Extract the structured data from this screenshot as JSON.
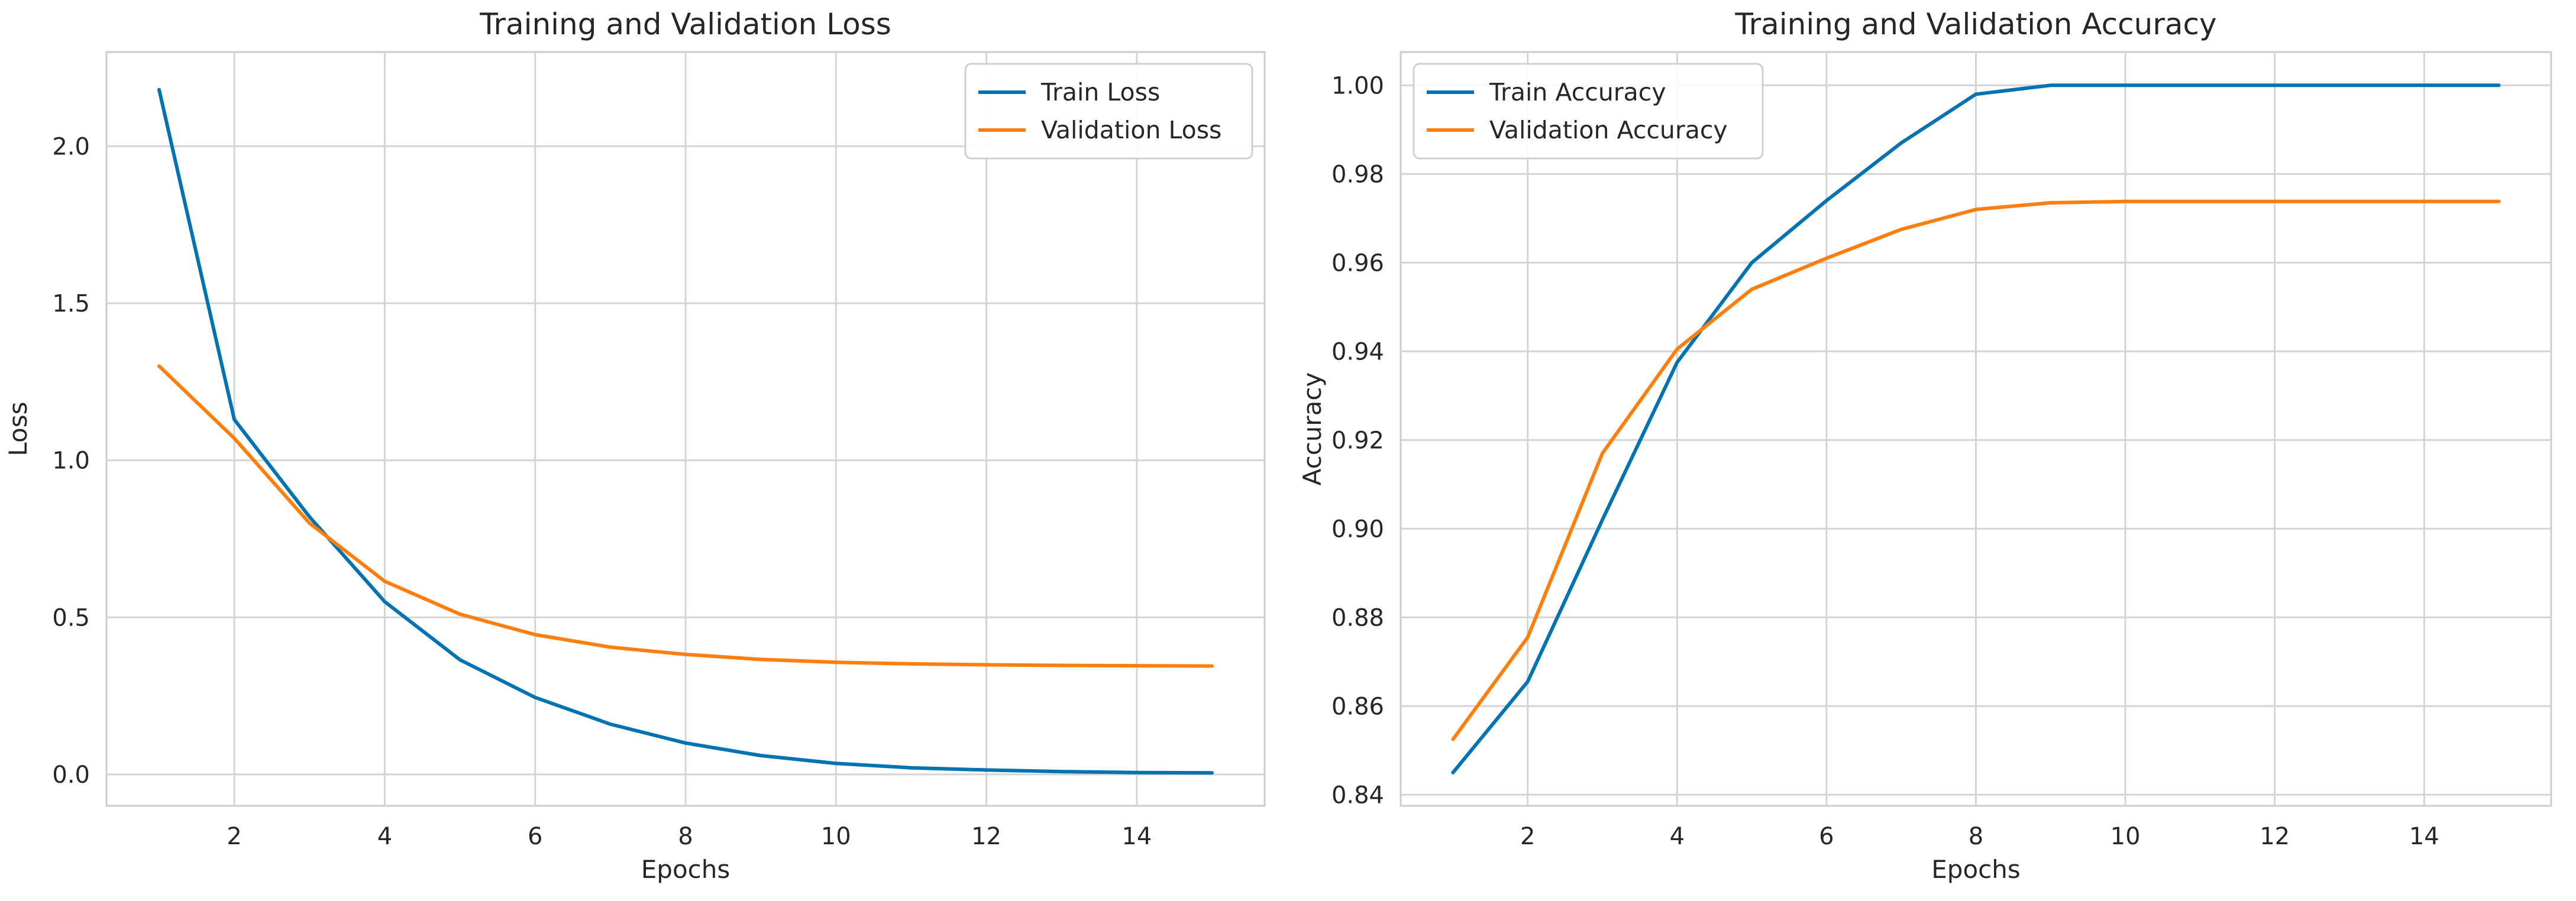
{
  "chart_data": [
    {
      "type": "line",
      "title": "Training and Validation Loss",
      "xlabel": "Epochs",
      "ylabel": "Loss",
      "xlim": [
        0.3,
        15.7
      ],
      "ylim": [
        -0.1,
        2.3
      ],
      "xticks": [
        2,
        4,
        6,
        8,
        10,
        12,
        14
      ],
      "yticks": [
        0.0,
        0.5,
        1.0,
        1.5,
        2.0
      ],
      "yticks_labels": [
        "0.0",
        "0.5",
        "1.0",
        "1.5",
        "2.0"
      ],
      "grid": true,
      "legend_position": "top-right",
      "x": [
        1,
        2,
        3,
        4,
        5,
        6,
        7,
        8,
        9,
        10,
        11,
        12,
        13,
        14,
        15
      ],
      "series": [
        {
          "name": "Train Loss",
          "color": "#0173b2",
          "values": [
            2.18,
            1.13,
            0.82,
            0.55,
            0.365,
            0.245,
            0.16,
            0.1,
            0.06,
            0.035,
            0.021,
            0.014,
            0.009,
            0.006,
            0.005
          ]
        },
        {
          "name": "Validation Loss",
          "color": "#ff7f0e",
          "values": [
            1.3,
            1.07,
            0.8,
            0.615,
            0.51,
            0.445,
            0.405,
            0.382,
            0.366,
            0.357,
            0.352,
            0.349,
            0.347,
            0.346,
            0.345
          ]
        }
      ]
    },
    {
      "type": "line",
      "title": "Training and Validation Accuracy",
      "xlabel": "Epochs",
      "ylabel": "Accuracy",
      "xlim": [
        0.3,
        15.7
      ],
      "ylim": [
        0.8375,
        1.0075
      ],
      "xticks": [
        2,
        4,
        6,
        8,
        10,
        12,
        14
      ],
      "yticks": [
        0.84,
        0.86,
        0.88,
        0.9,
        0.92,
        0.94,
        0.96,
        0.98,
        1.0
      ],
      "yticks_labels": [
        "0.84",
        "0.86",
        "0.88",
        "0.90",
        "0.92",
        "0.94",
        "0.96",
        "0.98",
        "1.00"
      ],
      "grid": true,
      "legend_position": "top-left",
      "x": [
        1,
        2,
        3,
        4,
        5,
        6,
        7,
        8,
        9,
        10,
        11,
        12,
        13,
        14,
        15
      ],
      "series": [
        {
          "name": "Train Accuracy",
          "color": "#0173b2",
          "values": [
            0.845,
            0.8655,
            0.902,
            0.9375,
            0.96,
            0.974,
            0.987,
            0.998,
            1.0,
            1.0,
            1.0,
            1.0,
            1.0,
            1.0,
            1.0
          ]
        },
        {
          "name": "Validation Accuracy",
          "color": "#ff7f0e",
          "values": [
            0.8525,
            0.8755,
            0.917,
            0.9405,
            0.954,
            0.961,
            0.9675,
            0.972,
            0.9735,
            0.9738,
            0.9738,
            0.9738,
            0.9738,
            0.9738,
            0.9738
          ]
        }
      ]
    }
  ]
}
